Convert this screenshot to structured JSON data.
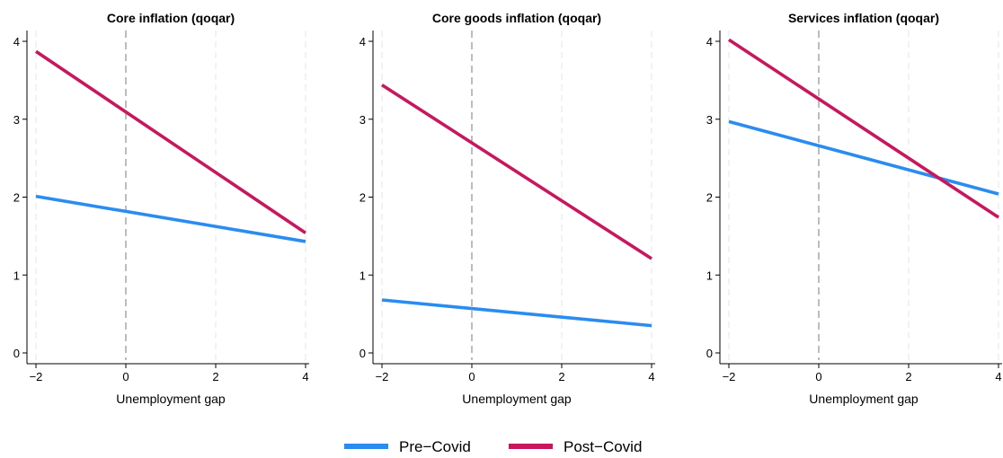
{
  "chart_data": [
    {
      "type": "line",
      "title": "Core inflation (qoqar)",
      "xlabel": "Unemployment gap",
      "ylabel": "",
      "xlim": [
        -2,
        4
      ],
      "ylim": [
        0,
        4
      ],
      "x_ticks": [
        -2,
        0,
        2,
        4
      ],
      "y_ticks": [
        0,
        1,
        2,
        3,
        4
      ],
      "x_tick_labels": [
        "−2",
        "0",
        "2",
        "4"
      ],
      "y_tick_labels": [
        "0",
        "1",
        "2",
        "3",
        "4"
      ],
      "reference_line_x": 0,
      "series": [
        {
          "name": "Pre−Covid",
          "x": [
            -2,
            4
          ],
          "y": [
            2.01,
            1.43
          ]
        },
        {
          "name": "Post−Covid",
          "x": [
            -2,
            4
          ],
          "y": [
            3.87,
            1.54
          ]
        }
      ]
    },
    {
      "type": "line",
      "title": "Core goods inflation (qoqar)",
      "xlabel": "Unemployment gap",
      "ylabel": "",
      "xlim": [
        -2,
        4
      ],
      "ylim": [
        0,
        4
      ],
      "x_ticks": [
        -2,
        0,
        2,
        4
      ],
      "y_ticks": [
        0,
        1,
        2,
        3,
        4
      ],
      "x_tick_labels": [
        "−2",
        "0",
        "2",
        "4"
      ],
      "y_tick_labels": [
        "0",
        "1",
        "2",
        "3",
        "4"
      ],
      "reference_line_x": 0,
      "series": [
        {
          "name": "Pre−Covid",
          "x": [
            -2,
            4
          ],
          "y": [
            0.68,
            0.35
          ]
        },
        {
          "name": "Post−Covid",
          "x": [
            -2,
            4
          ],
          "y": [
            3.44,
            1.21
          ]
        }
      ]
    },
    {
      "type": "line",
      "title": "Services inflation (qoqar)",
      "xlabel": "Unemployment gap",
      "ylabel": "",
      "xlim": [
        -2,
        4
      ],
      "ylim": [
        0,
        4
      ],
      "x_ticks": [
        -2,
        0,
        2,
        4
      ],
      "y_ticks": [
        0,
        1,
        2,
        3,
        4
      ],
      "x_tick_labels": [
        "−2",
        "0",
        "2",
        "4"
      ],
      "y_tick_labels": [
        "0",
        "1",
        "2",
        "3",
        "4"
      ],
      "reference_line_x": 0,
      "series": [
        {
          "name": "Pre−Covid",
          "x": [
            -2,
            4
          ],
          "y": [
            2.97,
            2.04
          ]
        },
        {
          "name": "Post−Covid",
          "x": [
            -2,
            4
          ],
          "y": [
            4.02,
            1.74
          ]
        }
      ]
    }
  ],
  "legend": {
    "position": "bottom-center",
    "items": [
      {
        "label": "Pre−Covid",
        "color": "#2b8cf0"
      },
      {
        "label": "Post−Covid",
        "color": "#c8175d"
      }
    ]
  },
  "colors": {
    "Pre−Covid": "#2b8cf0",
    "Post−Covid": "#c8175d",
    "reference_line": "#999999",
    "grid": "#e8e8e8"
  },
  "grid": {
    "vertical": true,
    "horizontal": false
  }
}
